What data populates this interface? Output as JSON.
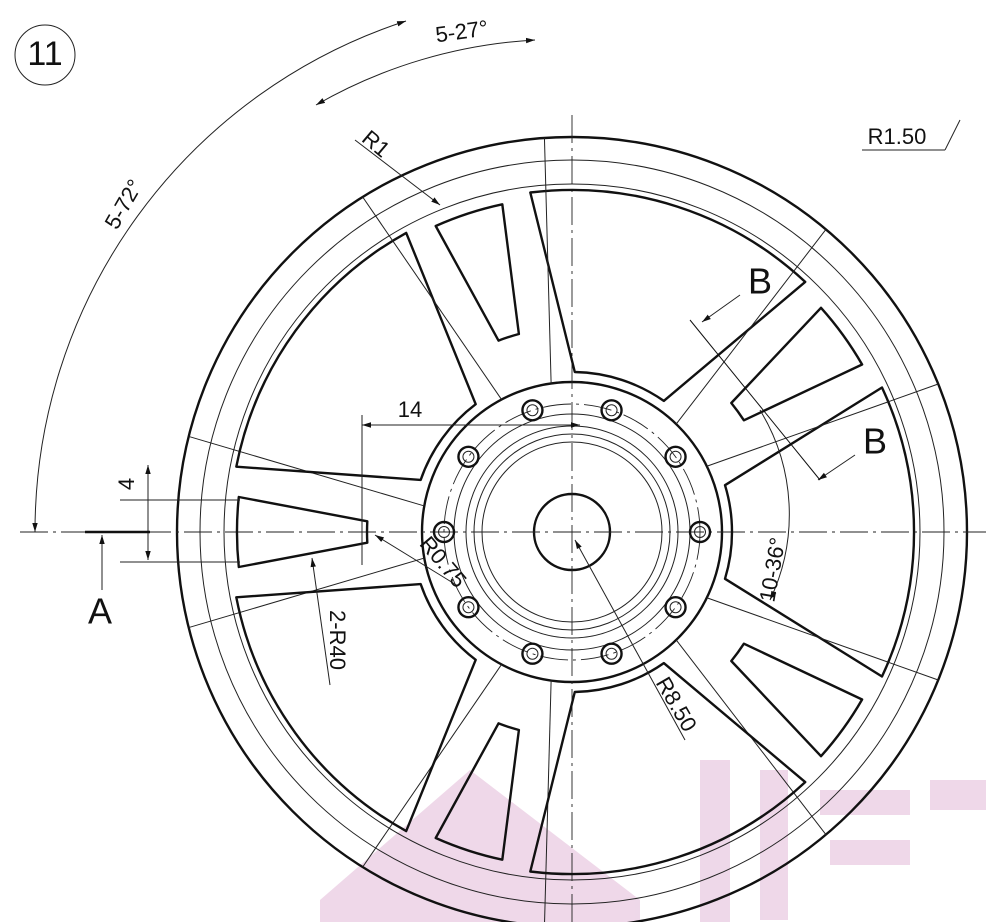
{
  "badge": "11",
  "dimensions": {
    "spoke_pitch": "5-27°",
    "pair_pitch": "5-72°",
    "radius_r1": "R1",
    "radius_r150": "R1.50",
    "section_b_top": "B",
    "section_b_bottom": "B",
    "offset_14": "14",
    "slot_width_4": "4",
    "section_a": "A",
    "radius_r075": "R0.75",
    "radius_r40": "2-R40",
    "radius_r850": "R8.50",
    "bolt_pitch": "10-36°"
  }
}
